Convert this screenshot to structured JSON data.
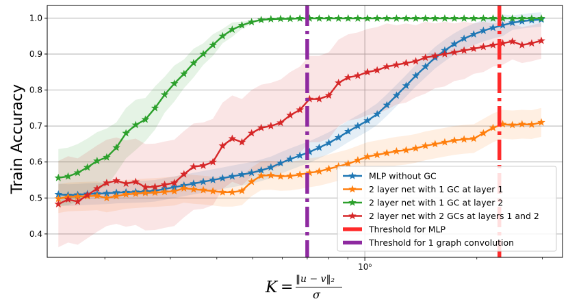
{
  "chart_data": {
    "type": "line",
    "title": "",
    "ylabel": "Train Accuracy",
    "xlabel": {
      "k": "K",
      "eq": "=",
      "numerator": "‖u − v‖₂",
      "denominator": "σ"
    },
    "xscale": "log",
    "xlim": [
      0.14,
      3.4
    ],
    "ylim": [
      0.335,
      1.035
    ],
    "y_ticks": [
      0.4,
      0.5,
      0.6,
      0.7,
      0.8,
      0.9,
      1.0
    ],
    "y_tick_labels": [
      "0.4",
      "0.5",
      "0.6",
      "0.7",
      "0.8",
      "0.9",
      "1.0"
    ],
    "x_major_ticks": [
      1.0
    ],
    "x_major_tick_labels": [
      "10⁰"
    ],
    "x_minor_ticks": [
      0.2,
      0.3,
      0.4,
      0.5,
      0.6,
      0.7,
      0.8,
      0.9,
      2.0,
      3.0
    ],
    "grid": true,
    "legend_position": "lower-right",
    "x": [
      0.15,
      0.1593,
      0.1691,
      0.1795,
      0.1906,
      0.2023,
      0.2148,
      0.228,
      0.2421,
      0.257,
      0.2728,
      0.2896,
      0.3075,
      0.3264,
      0.3465,
      0.3679,
      0.3905,
      0.4146,
      0.4401,
      0.4673,
      0.4961,
      0.5266,
      0.5591,
      0.5936,
      0.6301,
      0.669,
      0.7102,
      0.7539,
      0.8004,
      0.8497,
      0.902,
      0.9576,
      1.0166,
      1.0793,
      1.1458,
      1.2164,
      1.2913,
      1.3709,
      1.4553,
      1.545,
      1.6402,
      1.7412,
      1.8485,
      1.9624,
      2.0833,
      2.2116,
      2.3479,
      2.4925,
      2.6461,
      2.8091,
      2.9822
    ],
    "series": [
      {
        "name": "MLP without GC",
        "color": "#1f77b4",
        "values": [
          0.51,
          0.508,
          0.509,
          0.511,
          0.512,
          0.513,
          0.515,
          0.516,
          0.517,
          0.518,
          0.52,
          0.525,
          0.53,
          0.535,
          0.54,
          0.545,
          0.55,
          0.555,
          0.56,
          0.565,
          0.57,
          0.577,
          0.585,
          0.597,
          0.608,
          0.618,
          0.628,
          0.64,
          0.653,
          0.668,
          0.685,
          0.7,
          0.715,
          0.733,
          0.758,
          0.785,
          0.812,
          0.84,
          0.865,
          0.89,
          0.91,
          0.928,
          0.943,
          0.955,
          0.965,
          0.973,
          0.98,
          0.987,
          0.991,
          0.994,
          0.996
        ],
        "band": [
          0.03,
          0.03,
          0.03,
          0.03,
          0.03,
          0.03,
          0.03,
          0.03,
          0.03,
          0.03,
          0.03,
          0.03,
          0.03,
          0.03,
          0.03,
          0.03,
          0.03,
          0.03,
          0.03,
          0.03,
          0.03,
          0.03,
          0.03,
          0.03,
          0.03,
          0.03,
          0.03,
          0.03,
          0.03,
          0.03,
          0.03,
          0.03,
          0.03,
          0.03,
          0.03,
          0.03,
          0.03,
          0.03,
          0.03,
          0.03,
          0.03,
          0.03,
          0.03,
          0.03,
          0.03,
          0.03,
          0.03,
          0.02,
          0.02,
          0.02,
          0.02
        ]
      },
      {
        "name": "2 layer net with 1 GC at layer 1",
        "color": "#ff7f0e",
        "values": [
          0.498,
          0.503,
          0.504,
          0.505,
          0.506,
          0.5,
          0.505,
          0.51,
          0.512,
          0.514,
          0.515,
          0.517,
          0.519,
          0.527,
          0.524,
          0.522,
          0.519,
          0.516,
          0.516,
          0.52,
          0.545,
          0.562,
          0.563,
          0.56,
          0.561,
          0.565,
          0.57,
          0.574,
          0.581,
          0.588,
          0.595,
          0.605,
          0.615,
          0.62,
          0.625,
          0.63,
          0.633,
          0.638,
          0.645,
          0.65,
          0.655,
          0.66,
          0.663,
          0.665,
          0.68,
          0.695,
          0.705,
          0.703,
          0.705,
          0.704,
          0.71
        ],
        "band": [
          0.04,
          0.04,
          0.04,
          0.04,
          0.04,
          0.04,
          0.04,
          0.04,
          0.04,
          0.04,
          0.04,
          0.04,
          0.04,
          0.04,
          0.04,
          0.04,
          0.04,
          0.04,
          0.04,
          0.04,
          0.04,
          0.04,
          0.04,
          0.04,
          0.04,
          0.04,
          0.04,
          0.04,
          0.04,
          0.04,
          0.04,
          0.04,
          0.04,
          0.04,
          0.04,
          0.04,
          0.04,
          0.04,
          0.04,
          0.04,
          0.04,
          0.04,
          0.04,
          0.04,
          0.04,
          0.04,
          0.04,
          0.04,
          0.04,
          0.04,
          0.04
        ]
      },
      {
        "name": "2 layer net with 1 GC at layer 2",
        "color": "#2ca02c",
        "values": [
          0.556,
          0.56,
          0.57,
          0.585,
          0.603,
          0.613,
          0.64,
          0.68,
          0.703,
          0.718,
          0.75,
          0.787,
          0.818,
          0.845,
          0.875,
          0.9,
          0.925,
          0.95,
          0.968,
          0.98,
          0.989,
          0.995,
          0.997,
          0.998,
          0.998,
          0.999,
          0.999,
          0.999,
          0.999,
          0.999,
          0.999,
          0.999,
          0.999,
          0.999,
          0.999,
          0.999,
          0.999,
          0.999,
          0.999,
          0.999,
          0.999,
          0.999,
          0.999,
          0.999,
          0.999,
          0.999,
          0.999,
          0.999,
          0.999,
          0.999,
          0.999
        ],
        "band": [
          0.08,
          0.08,
          0.08,
          0.08,
          0.08,
          0.08,
          0.07,
          0.07,
          0.07,
          0.06,
          0.06,
          0.05,
          0.05,
          0.04,
          0.04,
          0.03,
          0.03,
          0.02,
          0.02,
          0.01,
          0.005,
          0.003,
          0.003,
          0.003,
          0.003,
          0.003,
          0.003,
          0.003,
          0.003,
          0.003,
          0.003,
          0.003,
          0.003,
          0.003,
          0.003,
          0.003,
          0.003,
          0.003,
          0.003,
          0.003,
          0.003,
          0.003,
          0.003,
          0.003,
          0.003,
          0.003,
          0.003,
          0.003,
          0.003,
          0.003,
          0.003
        ]
      },
      {
        "name": "2 layer net with 2 GCs at layers 1 and 2",
        "color": "#d62728",
        "values": [
          0.483,
          0.496,
          0.49,
          0.508,
          0.526,
          0.542,
          0.548,
          0.54,
          0.545,
          0.53,
          0.531,
          0.537,
          0.542,
          0.566,
          0.587,
          0.59,
          0.6,
          0.645,
          0.665,
          0.655,
          0.68,
          0.695,
          0.7,
          0.709,
          0.73,
          0.745,
          0.775,
          0.775,
          0.785,
          0.82,
          0.835,
          0.84,
          0.85,
          0.855,
          0.865,
          0.87,
          0.875,
          0.88,
          0.89,
          0.895,
          0.9,
          0.905,
          0.91,
          0.915,
          0.92,
          0.925,
          0.93,
          0.935,
          0.925,
          0.93,
          0.937
        ],
        "band": [
          0.12,
          0.12,
          0.12,
          0.12,
          0.12,
          0.12,
          0.12,
          0.12,
          0.12,
          0.12,
          0.12,
          0.12,
          0.12,
          0.12,
          0.12,
          0.12,
          0.12,
          0.12,
          0.12,
          0.12,
          0.12,
          0.12,
          0.12,
          0.12,
          0.12,
          0.12,
          0.12,
          0.12,
          0.12,
          0.12,
          0.12,
          0.12,
          0.12,
          0.12,
          0.12,
          0.11,
          0.11,
          0.1,
          0.1,
          0.09,
          0.09,
          0.08,
          0.08,
          0.07,
          0.07,
          0.06,
          0.06,
          0.05,
          0.05,
          0.05,
          0.05
        ]
      }
    ],
    "thresholds": [
      {
        "name": "Threshold for MLP",
        "x": 2.3,
        "color": "#ff2a2a"
      },
      {
        "name": "Threshold for 1 graph convolution",
        "x": 0.7,
        "color": "#8e2aa0"
      }
    ]
  }
}
